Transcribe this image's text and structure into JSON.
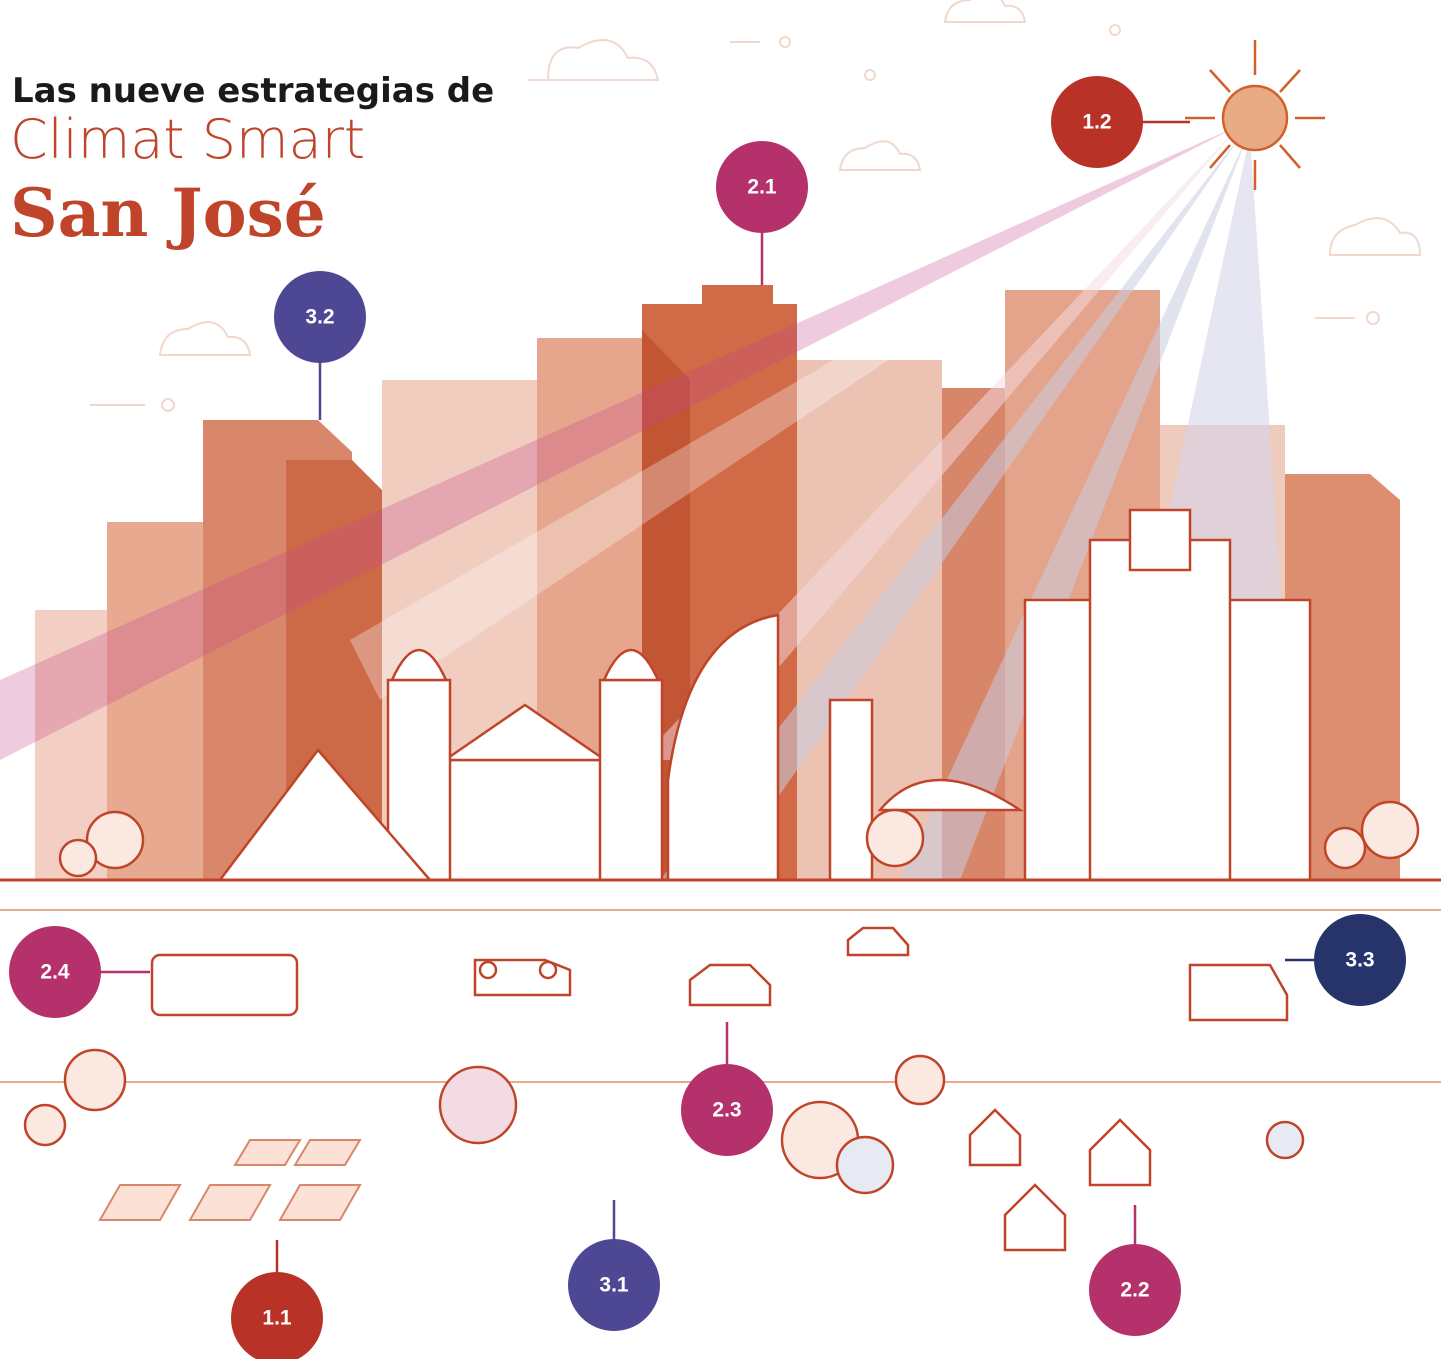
{
  "title": {
    "line1": "Las nueve estrategias de",
    "line2": "Climat Smart",
    "line3": "San José"
  },
  "markers": [
    {
      "label": "1.2"
    },
    {
      "label": "2.1"
    },
    {
      "label": "3.2"
    },
    {
      "label": "2.4"
    },
    {
      "label": "3.3"
    },
    {
      "label": "2.3"
    },
    {
      "label": "3.1"
    },
    {
      "label": "2.2"
    },
    {
      "label": "1.1"
    }
  ]
}
